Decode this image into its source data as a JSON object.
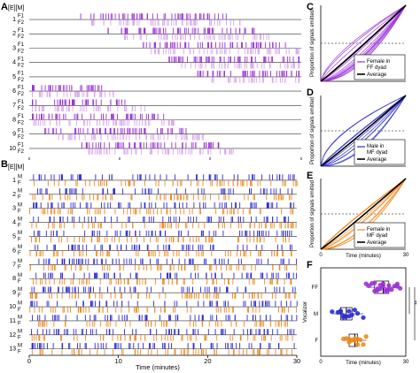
{
  "panels": {
    "A": {
      "letter": "A",
      "header": "[E][M]"
    },
    "B": {
      "letter": "B",
      "header": "[E][M]"
    },
    "C": {
      "letter": "C"
    },
    "D": {
      "letter": "D"
    },
    "E": {
      "letter": "E"
    },
    "F": {
      "letter": "F"
    }
  },
  "colors": {
    "female_ff": "#9b30d9",
    "female_ff_light": "#d9a6ee",
    "male": "#2b2bd6",
    "female_mf": "#f08a1c",
    "average": "#000000"
  },
  "chart_data": [
    {
      "id": "A",
      "type": "raster",
      "description_rows": [
        "1",
        "2",
        "3",
        "4",
        "5",
        "6",
        "7",
        "8",
        "9",
        "10"
      ],
      "sublabels": [
        "F1",
        "F2"
      ],
      "series_colors": [
        "#9b30d9",
        "#d9a6ee"
      ]
    },
    {
      "id": "B",
      "type": "raster",
      "description_rows": [
        "1",
        "2",
        "3",
        "4",
        "5",
        "6",
        "7",
        "8",
        "9",
        "10",
        "11",
        "12",
        "13"
      ],
      "sublabels": [
        "M",
        "F"
      ],
      "series_colors": [
        "#2b2bd6",
        "#f08a1c"
      ],
      "xlabel": "Time (minutes)",
      "xticks": [
        "0",
        "10",
        "20",
        "30"
      ],
      "xlim": [
        0,
        30
      ]
    },
    {
      "id": "C",
      "type": "line",
      "ylabel": "Proportion of signals emitted",
      "xlim": [
        0,
        30
      ],
      "ylim": [
        0,
        1
      ],
      "legend": [
        "Female in FF dyad",
        "Average"
      ],
      "legend_line2": "FF dyad",
      "legend_first": "Female in",
      "reference_y": 0.5
    },
    {
      "id": "D",
      "type": "line",
      "ylabel": "Proportion of signals emitted",
      "xlim": [
        0,
        30
      ],
      "ylim": [
        0,
        1
      ],
      "legend_first": "Male in",
      "legend_line2": "MF dyad",
      "legend_avg": "Average",
      "reference_y": 0.5
    },
    {
      "id": "E",
      "type": "line",
      "ylabel": "Proportion of signals emitted",
      "xlabel": "Time (minutes)",
      "xticks": [
        "0",
        "30"
      ],
      "xlim": [
        0,
        30
      ],
      "ylim": [
        0,
        1
      ],
      "legend_first": "Female in",
      "legend_line2": "MF dyad",
      "legend_avg": "Average",
      "reference_y": 0.5
    },
    {
      "id": "F",
      "type": "scatter",
      "ylabel": "Vocalizer",
      "xlabel": "Time (minutes)",
      "xticks": [
        "0",
        "30"
      ],
      "categories": [
        "FF",
        "M",
        "F"
      ],
      "significance": [
        "**",
        "**"
      ],
      "FF_medians_minutes": [
        16,
        18,
        19,
        20,
        20,
        21,
        21,
        22,
        22,
        23,
        23,
        24,
        25,
        26,
        27,
        27,
        28,
        17,
        19,
        24
      ],
      "M_medians_minutes": [
        4,
        6,
        7,
        8,
        8,
        9,
        10,
        10,
        11,
        12,
        13,
        15,
        7
      ],
      "F_medians_minutes": [
        8,
        9,
        10,
        10,
        11,
        12,
        12,
        13,
        13,
        14,
        15,
        16,
        11
      ]
    }
  ]
}
